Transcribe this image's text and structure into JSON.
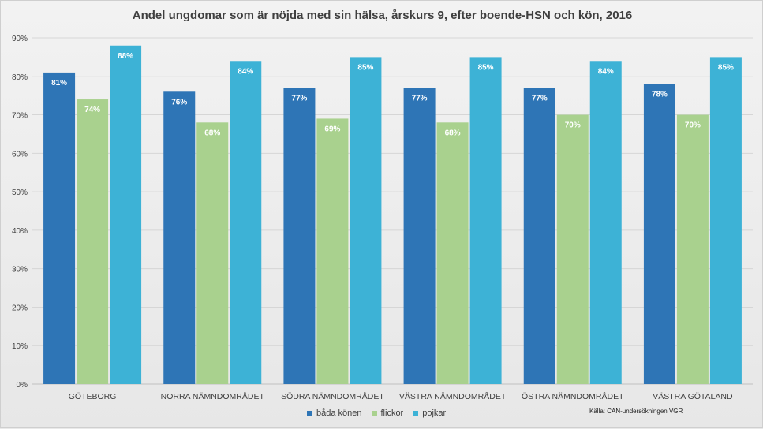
{
  "chart_data": {
    "type": "bar",
    "title": "Andel ungdomar som är nöjda med sin hälsa, årskurs 9, efter boende-HSN och kön, 2016",
    "xlabel": "",
    "ylabel": "",
    "ylim": [
      0,
      90
    ],
    "ytick_step": 10,
    "yticks": [
      "0%",
      "10%",
      "20%",
      "30%",
      "40%",
      "50%",
      "60%",
      "70%",
      "80%",
      "90%"
    ],
    "categories": [
      "GÖTEBORG",
      "NORRA NÄMNDOMRÅDET",
      "SÖDRA NÄMNDOMRÅDET",
      "VÄSTRA NÄMNDOMRÅDET",
      "ÖSTRA NÄMNDOMRÅDET",
      "VÄSTRA GÖTALAND"
    ],
    "series": [
      {
        "name": "båda könen",
        "color": "#2e75b6",
        "values": [
          81,
          76,
          77,
          77,
          77,
          78
        ],
        "labels": [
          "81%",
          "76%",
          "77%",
          "77%",
          "77%",
          "78%"
        ]
      },
      {
        "name": "flickor",
        "color": "#a9d18e",
        "values": [
          74,
          68,
          69,
          68,
          70,
          70
        ],
        "labels": [
          "74%",
          "68%",
          "69%",
          "68%",
          "70%",
          "70%"
        ]
      },
      {
        "name": "pojkar",
        "color": "#3db2d6",
        "values": [
          88,
          84,
          85,
          85,
          84,
          85
        ],
        "labels": [
          "88%",
          "84%",
          "85%",
          "85%",
          "84%",
          "85%"
        ]
      }
    ],
    "grid": true,
    "legend_position": "bottom"
  },
  "source": "Källa: CAN-undersökningen VGR"
}
